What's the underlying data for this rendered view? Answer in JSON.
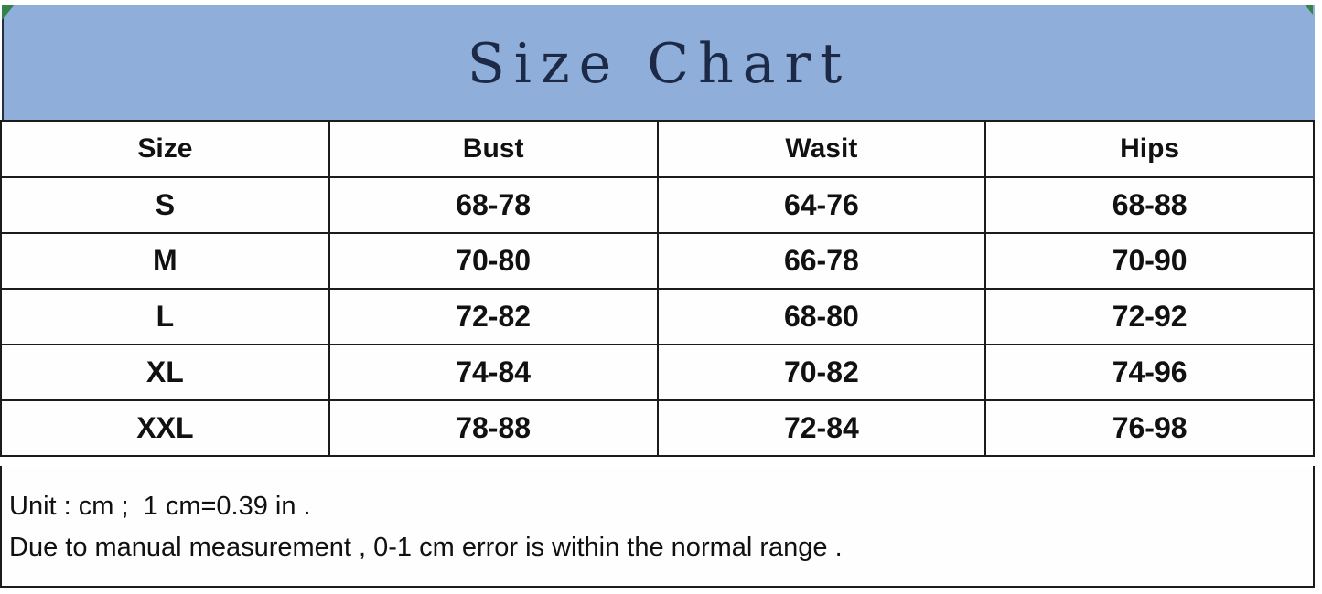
{
  "title": "Size Chart",
  "table": {
    "headers": [
      "Size",
      "Bust",
      "Wasit",
      "Hips"
    ],
    "rows": [
      [
        "S",
        "68-78",
        "64-76",
        "68-88"
      ],
      [
        "M",
        "70-80",
        "66-78",
        "70-90"
      ],
      [
        "L",
        "72-82",
        "68-80",
        "72-92"
      ],
      [
        "XL",
        "74-84",
        "70-82",
        "74-96"
      ],
      [
        "XXL",
        "78-88",
        "72-84",
        "76-98"
      ]
    ]
  },
  "notes": [
    "Unit : cm ;  1 cm=0.39 in .",
    "Due to manual measurement , 0-1 cm error is within the normal range ."
  ],
  "chart_data": {
    "type": "table",
    "title": "Size Chart",
    "columns": [
      "Size",
      "Bust",
      "Wasit",
      "Hips"
    ],
    "rows": [
      [
        "S",
        "68-78",
        "64-76",
        "68-88"
      ],
      [
        "M",
        "70-80",
        "66-78",
        "70-90"
      ],
      [
        "L",
        "72-82",
        "68-80",
        "72-92"
      ],
      [
        "XL",
        "74-84",
        "70-82",
        "74-96"
      ],
      [
        "XXL",
        "78-88",
        "72-84",
        "76-98"
      ]
    ],
    "unit": "cm"
  },
  "colors": {
    "banner_bg": "#8fafda",
    "title_text": "#1c2a47",
    "border": "#1b1b1b",
    "marker_green": "#35824b"
  }
}
